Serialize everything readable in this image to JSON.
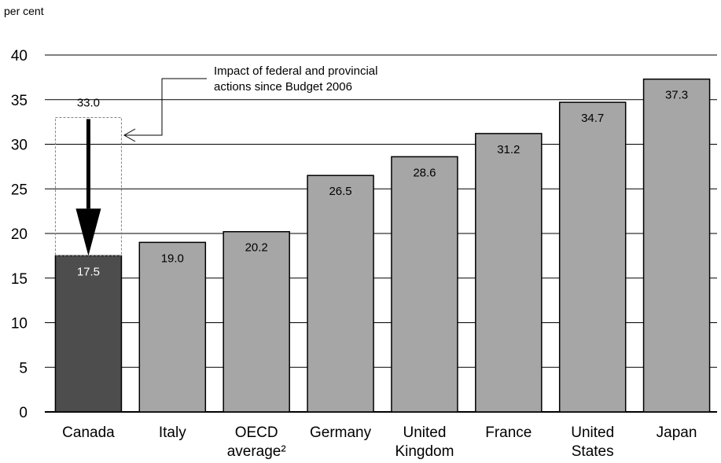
{
  "chart_data": {
    "type": "bar",
    "ylabel": "per cent",
    "ylim": [
      0,
      40
    ],
    "yticks": [
      0,
      5,
      10,
      15,
      20,
      25,
      30,
      35,
      40
    ],
    "grid": true,
    "categories": [
      [
        "Canada"
      ],
      [
        "Italy"
      ],
      [
        "OECD",
        "average²"
      ],
      [
        "Germany"
      ],
      [
        "United",
        "Kingdom"
      ],
      [
        "France"
      ],
      [
        "United",
        "States"
      ],
      [
        "Japan"
      ]
    ],
    "values": [
      17.5,
      19.0,
      20.2,
      26.5,
      28.6,
      31.2,
      34.7,
      37.3
    ],
    "value_labels": [
      "17.5",
      "19.0",
      "20.2",
      "26.5",
      "28.6",
      "31.2",
      "34.7",
      "37.3"
    ],
    "highlight_index": 0,
    "colors": {
      "highlight": "#4d4d4d",
      "bars": "#a6a6a6",
      "grid": "#000000"
    },
    "prior_value": 33.0,
    "prior_label": "33.0",
    "annotation": [
      "Impact of federal and provincial",
      "actions since Budget 2006"
    ]
  }
}
